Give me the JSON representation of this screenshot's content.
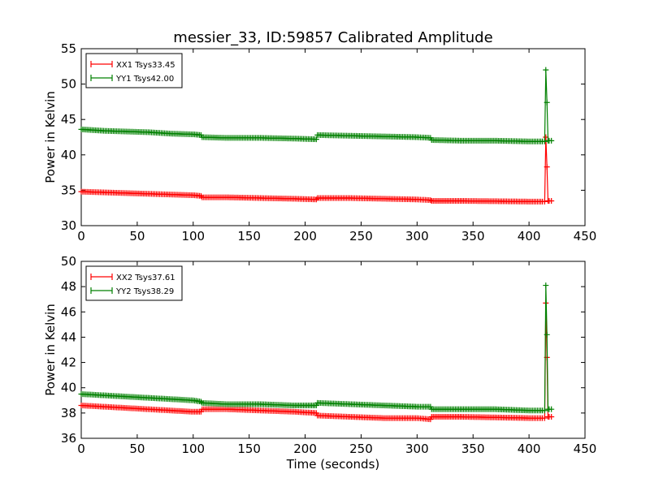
{
  "figure_title": "messier_33, ID:59857 Calibrated Amplitude",
  "chart_data": [
    {
      "type": "line",
      "title": "messier_33, ID:59857 Calibrated Amplitude",
      "xlabel": "",
      "ylabel": "Power in Kelvin",
      "xlim": [
        0,
        450
      ],
      "ylim": [
        30,
        55
      ],
      "xticks": [
        "0",
        "50",
        "100",
        "150",
        "200",
        "250",
        "300",
        "350",
        "400",
        "450"
      ],
      "yticks": [
        "30",
        "35",
        "40",
        "45",
        "50",
        "55"
      ],
      "legend_position": "top-left",
      "grid": false,
      "series": [
        {
          "name": "XX1 Tsys33.45",
          "color": "#ff0000",
          "marker": "+",
          "x": [
            0,
            20,
            40,
            60,
            80,
            100,
            107,
            108,
            130,
            160,
            190,
            210,
            211,
            240,
            270,
            300,
            312,
            313,
            340,
            370,
            400,
            412,
            414,
            415,
            416,
            417,
            418,
            420
          ],
          "y": [
            34.8,
            34.7,
            34.6,
            34.5,
            34.4,
            34.3,
            34.2,
            34.0,
            34.0,
            33.9,
            33.8,
            33.7,
            33.9,
            33.9,
            33.8,
            33.7,
            33.6,
            33.5,
            33.5,
            33.45,
            33.4,
            33.4,
            33.4,
            42.5,
            38.3,
            33.5,
            33.5,
            33.5
          ]
        },
        {
          "name": "YY1 Tsys42.00",
          "color": "#008000",
          "marker": "+",
          "x": [
            0,
            20,
            40,
            60,
            80,
            100,
            107,
            108,
            130,
            160,
            190,
            210,
            211,
            240,
            270,
            300,
            312,
            313,
            340,
            370,
            400,
            412,
            414,
            415,
            416,
            417,
            418,
            420
          ],
          "y": [
            43.6,
            43.4,
            43.3,
            43.2,
            43.0,
            42.9,
            42.8,
            42.5,
            42.4,
            42.4,
            42.3,
            42.2,
            42.8,
            42.7,
            42.6,
            42.5,
            42.4,
            42.1,
            42.0,
            42.0,
            41.9,
            41.9,
            41.9,
            52.0,
            47.4,
            42.0,
            42.0,
            42.0
          ]
        }
      ]
    },
    {
      "type": "line",
      "title": "",
      "xlabel": "Time (seconds)",
      "ylabel": "Power in Kelvin",
      "xlim": [
        0,
        450
      ],
      "ylim": [
        36,
        50
      ],
      "xticks": [
        "0",
        "50",
        "100",
        "150",
        "200",
        "250",
        "300",
        "350",
        "400",
        "450"
      ],
      "yticks": [
        "36",
        "38",
        "40",
        "42",
        "44",
        "46",
        "48",
        "50"
      ],
      "legend_position": "top-left",
      "grid": false,
      "series": [
        {
          "name": "XX2 Tsys37.61",
          "color": "#ff0000",
          "marker": "+",
          "x": [
            0,
            20,
            40,
            60,
            80,
            100,
            107,
            108,
            130,
            160,
            190,
            210,
            211,
            240,
            270,
            300,
            312,
            313,
            340,
            370,
            400,
            412,
            414,
            415,
            416,
            417,
            418,
            420
          ],
          "y": [
            38.6,
            38.5,
            38.4,
            38.3,
            38.2,
            38.1,
            38.1,
            38.3,
            38.3,
            38.2,
            38.1,
            38.0,
            37.8,
            37.7,
            37.6,
            37.6,
            37.5,
            37.7,
            37.7,
            37.65,
            37.6,
            37.6,
            37.6,
            46.7,
            42.4,
            37.7,
            37.7,
            37.7
          ]
        },
        {
          "name": "YY2 Tsys38.29",
          "color": "#008000",
          "marker": "+",
          "x": [
            0,
            20,
            40,
            60,
            80,
            100,
            107,
            108,
            130,
            160,
            190,
            210,
            211,
            240,
            270,
            300,
            312,
            313,
            340,
            370,
            400,
            412,
            414,
            415,
            416,
            417,
            418,
            420
          ],
          "y": [
            39.5,
            39.4,
            39.3,
            39.2,
            39.1,
            39.0,
            38.9,
            38.8,
            38.7,
            38.7,
            38.6,
            38.6,
            38.8,
            38.7,
            38.6,
            38.5,
            38.5,
            38.3,
            38.3,
            38.3,
            38.2,
            38.2,
            38.2,
            48.1,
            44.2,
            38.3,
            38.3,
            38.3
          ]
        }
      ]
    }
  ]
}
